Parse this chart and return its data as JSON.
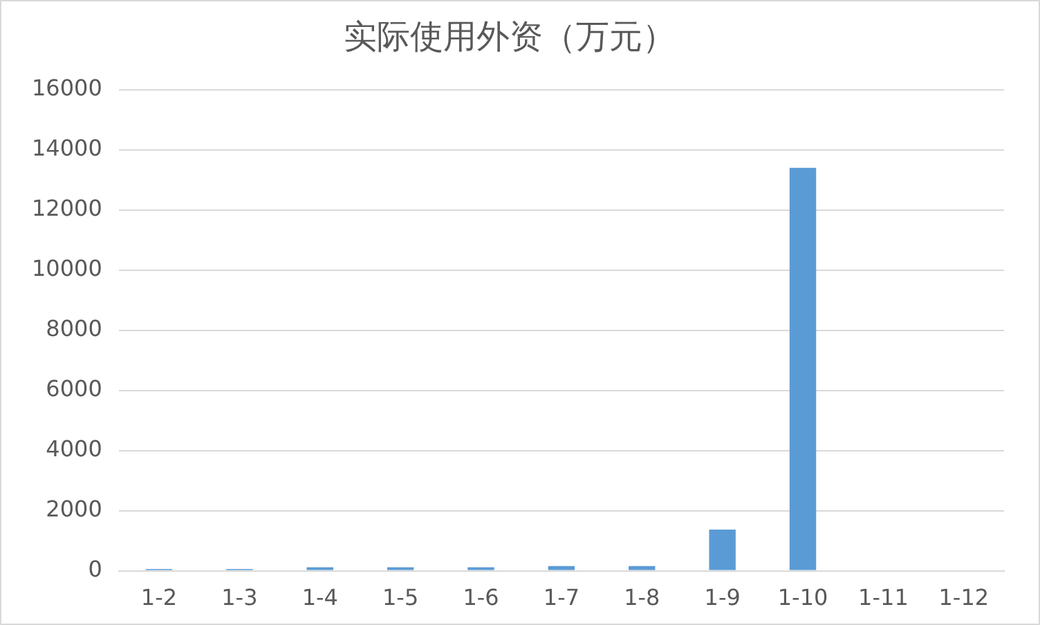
{
  "chart_data": {
    "type": "bar",
    "title": "实际使用外资（万元）",
    "categories": [
      "1-2",
      "1-3",
      "1-4",
      "1-5",
      "1-6",
      "1-7",
      "1-8",
      "1-9",
      "1-10",
      "1-11",
      "1-12"
    ],
    "values": [
      60,
      60,
      120,
      120,
      120,
      160,
      160,
      1370,
      13400,
      null,
      null
    ],
    "color": "#5b9bd5",
    "ylim": [
      0,
      16000
    ],
    "yticks": [
      0,
      2000,
      4000,
      6000,
      8000,
      10000,
      12000,
      14000,
      16000
    ],
    "grid": "y",
    "legend": false
  }
}
